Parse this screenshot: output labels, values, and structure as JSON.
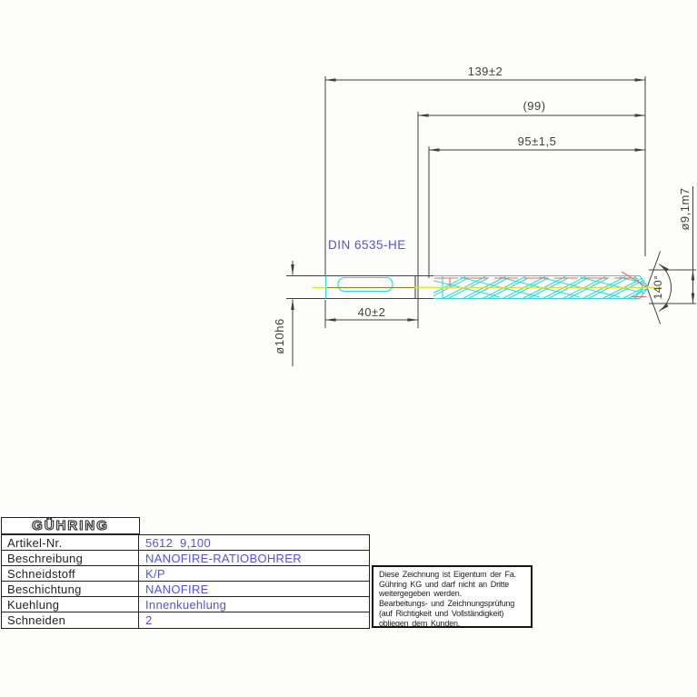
{
  "drawing": {
    "dim_overall_length": "139±2",
    "dim_reference_length": "(99)",
    "dim_flute_length": "95±1,5",
    "dim_shank_length": "40±2",
    "shank_standard": "DIN 6535-HE",
    "dia_shank": "ø10h6",
    "dia_point": "ø9,1m7",
    "point_angle": "140°"
  },
  "colors": {
    "line": "#3f3f3f",
    "blue": "#5353de",
    "cyan": "#25dcdc",
    "yellow": "#e4da45",
    "red": "#f2685c"
  },
  "info_table": {
    "logo": "GÜHRING",
    "rows": [
      {
        "label": "Artikel-Nr.",
        "value": "5612  9,100"
      },
      {
        "label": "Beschreibung",
        "value": "NANOFIRE-RATIOBOHRER"
      },
      {
        "label": "Schneidstoff",
        "value": "K/P"
      },
      {
        "label": "Beschichtung",
        "value": "NANOFIRE"
      },
      {
        "label": "Kuehlung",
        "value": "Innenkuehlung"
      },
      {
        "label": "Schneiden",
        "value": "2"
      }
    ]
  },
  "disclaimer": {
    "lines": [
      "Diese Zeichnung ist Eigentum der Fa.",
      "Gühring KG und darf nicht an Dritte",
      "weitergegeben werden.",
      "Bearbeitungs- und Zeichnungsprüfung",
      "(auf Richtigkeit und Vollständigkeit)",
      "obliegen dem Kunden."
    ]
  }
}
